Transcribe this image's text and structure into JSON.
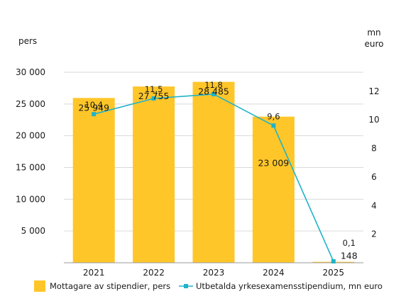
{
  "chart_data": {
    "type": "bar",
    "categories": [
      "2021",
      "2022",
      "2023",
      "2024",
      "2025"
    ],
    "left_axis": {
      "unit": "pers",
      "ylim": [
        0,
        30000
      ],
      "ticks": [
        "30 000",
        "25 000",
        "20 000",
        "15 000",
        "10 000",
        "5 000"
      ],
      "tick_values": [
        30000,
        25000,
        20000,
        15000,
        10000,
        5000
      ]
    },
    "right_axis": {
      "unit_line1": "mn",
      "unit_line2": "euro",
      "ylim": [
        0,
        13.333
      ],
      "ticks": [
        "12",
        "10",
        "8",
        "6",
        "4",
        "2"
      ],
      "tick_values": [
        12,
        10,
        8,
        6,
        4,
        2
      ]
    },
    "series": [
      {
        "name": "Mottagare av stipendier, pers",
        "type": "bar",
        "axis": "left",
        "values": [
          25949,
          27755,
          28485,
          23009,
          148
        ],
        "labels": [
          "25 949",
          "27 755",
          "28 485",
          "23 009",
          "148"
        ],
        "color": "#FFC629"
      },
      {
        "name": "Utbetalda yrkesexamensstipendium, mn euro",
        "type": "line",
        "axis": "right",
        "values": [
          10.4,
          11.5,
          11.8,
          9.6,
          0.1
        ],
        "labels": [
          "10,4",
          "11,5",
          "11,8",
          "9,6",
          "0,1"
        ],
        "color": "#1FB3C8"
      }
    ],
    "grid": true,
    "legend_position": "bottom"
  }
}
